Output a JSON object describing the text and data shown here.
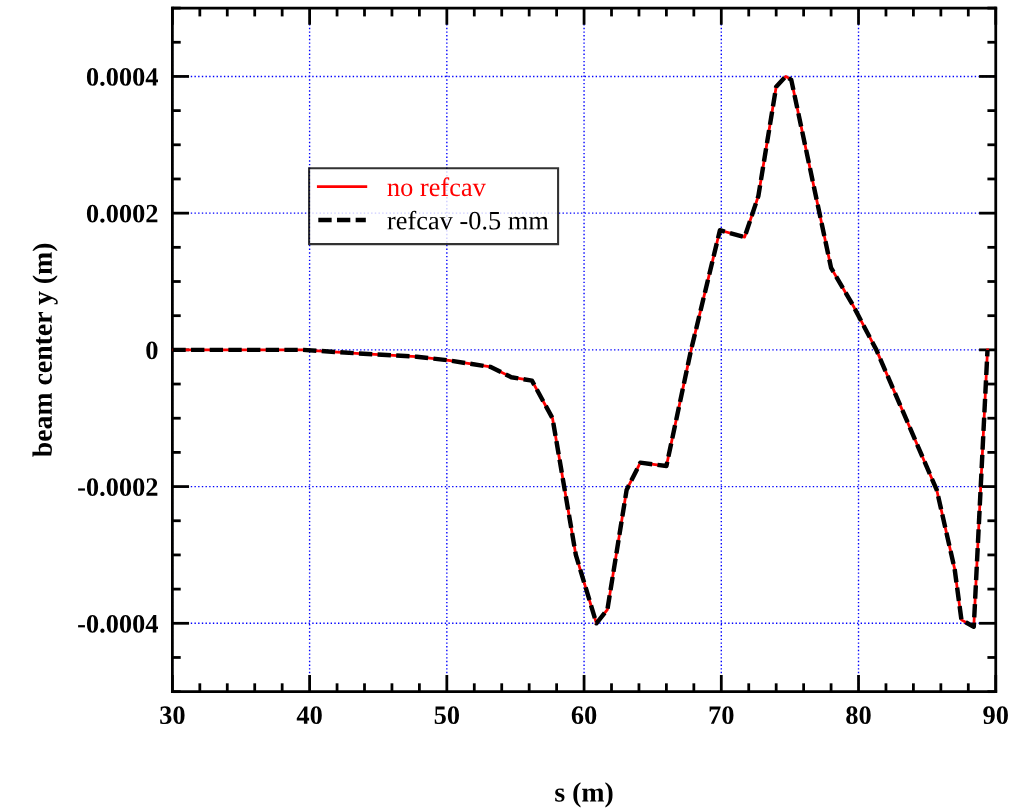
{
  "chart_data": {
    "type": "line",
    "xlabel": "s (m)",
    "ylabel": "beam center y (m)",
    "x": [
      30,
      33.7,
      39.5,
      43.4,
      47.8,
      50.0,
      53.2,
      54.7,
      56.2,
      57.7,
      59.4,
      60.9,
      61.7,
      63.1,
      64.1,
      66.0,
      67.8,
      69.9,
      71.7,
      72.7,
      74.0,
      74.7,
      75.1,
      78.0,
      79.6,
      81.3,
      85.7,
      87.0,
      87.5,
      88.4,
      89.4
    ],
    "series": [
      {
        "name": "no refcav",
        "color": "#ff0000",
        "line_style": "solid",
        "values": [
          0,
          0,
          0,
          -5e-06,
          -1e-05,
          -1.5e-05,
          -2.5e-05,
          -4e-05,
          -4.5e-05,
          -0.0001,
          -0.0003,
          -0.0004,
          -0.00038,
          -0.000205,
          -0.000165,
          -0.00017,
          0,
          0.000175,
          0.000165,
          0.000225,
          0.000385,
          0.0004,
          0.000395,
          0.00012,
          6.5e-05,
          0,
          -0.000205,
          -0.00032,
          -0.000395,
          -0.000405,
          0
        ]
      },
      {
        "name": "refcav -0.5 mm",
        "color": "#000000",
        "line_style": "dashed",
        "values": [
          0,
          0,
          0,
          -5e-06,
          -1e-05,
          -1.5e-05,
          -2.5e-05,
          -4e-05,
          -4.5e-05,
          -0.0001,
          -0.0003,
          -0.0004,
          -0.00038,
          -0.000205,
          -0.000165,
          -0.00017,
          0,
          0.000175,
          0.000165,
          0.000225,
          0.000385,
          0.0004,
          0.000395,
          0.00012,
          6.5e-05,
          0,
          -0.000205,
          -0.00032,
          -0.000395,
          -0.000405,
          0
        ]
      }
    ],
    "xlim": [
      30,
      90
    ],
    "xticks": [
      30,
      40,
      50,
      60,
      70,
      80,
      90
    ],
    "ylim": [
      -0.0005,
      0.0005
    ],
    "yticks": [
      -0.0004,
      -0.0002,
      0,
      0.0002,
      0.0004
    ],
    "grid": true,
    "legend": "top left",
    "marker": "none"
  }
}
